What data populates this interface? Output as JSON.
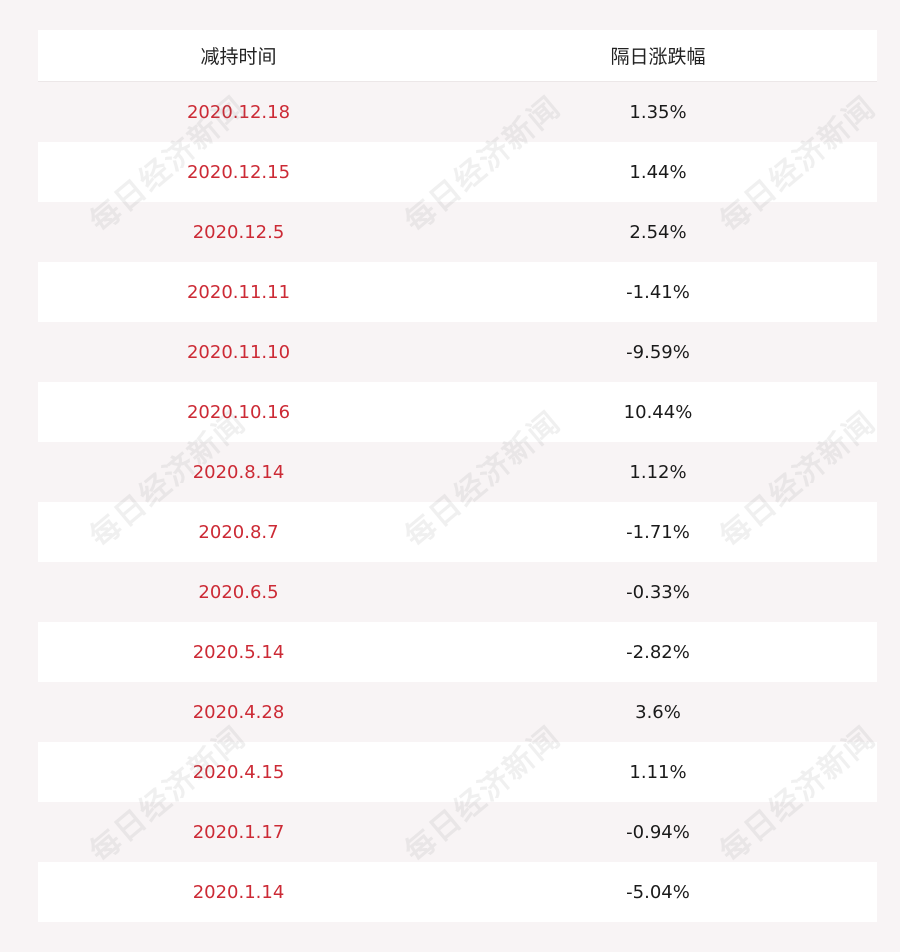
{
  "chart_data": {
    "type": "table",
    "columns": [
      "减持时间",
      "隔日涨跌幅"
    ],
    "rows": [
      [
        "2020.12.18",
        "1.35%"
      ],
      [
        "2020.12.15",
        "1.44%"
      ],
      [
        "2020.12.5",
        "2.54%"
      ],
      [
        "2020.11.11",
        "-1.41%"
      ],
      [
        "2020.11.10",
        "-9.59%"
      ],
      [
        "2020.10.16",
        "10.44%"
      ],
      [
        "2020.8.14",
        "1.12%"
      ],
      [
        "2020.8.7",
        "-1.71%"
      ],
      [
        "2020.6.5",
        "-0.33%"
      ],
      [
        "2020.5.14",
        "-2.82%"
      ],
      [
        "2020.4.28",
        "3.6%"
      ],
      [
        "2020.4.15",
        "1.11%"
      ],
      [
        "2020.1.17",
        "-0.94%"
      ],
      [
        "2020.1.14",
        "-5.04%"
      ]
    ]
  },
  "watermark": "每日经济新闻",
  "colors": {
    "date_text": "#cc2a35",
    "value_text": "#1a1a1a",
    "stripe": "#f8f4f5",
    "row": "#ffffff"
  }
}
